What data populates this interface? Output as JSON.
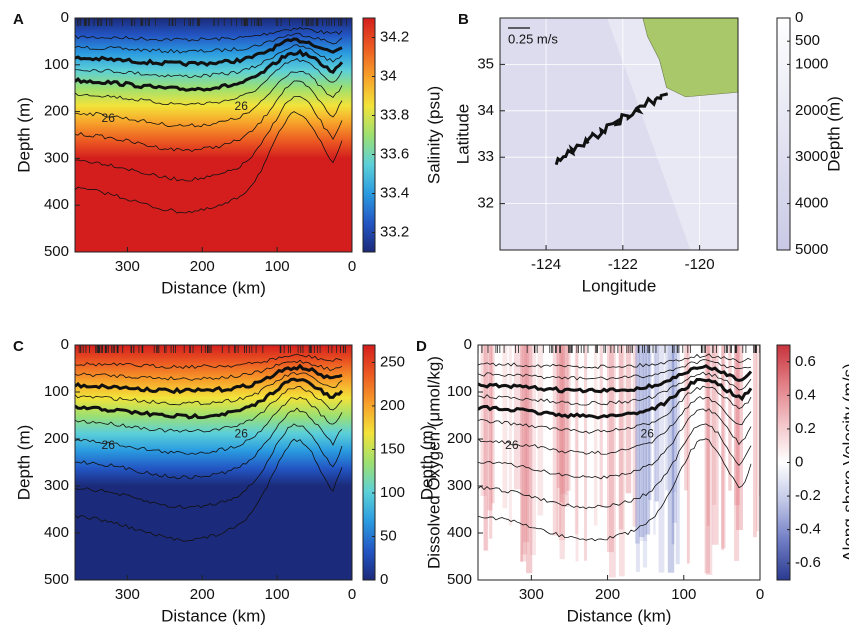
{
  "chart_data": [
    {
      "type": "section",
      "panel_label": "A",
      "xlabel": "Distance (km)",
      "ylabel": "Depth (m)",
      "xlim": [
        370,
        0
      ],
      "xticks": [
        300,
        200,
        100,
        0
      ],
      "ylim": [
        500,
        0
      ],
      "yticks": [
        0,
        100,
        200,
        300,
        400,
        500
      ],
      "colorbar_label": "Salinity (psu)",
      "clim": [
        33.1,
        34.3
      ],
      "cticks": [
        33.2,
        33.4,
        33.6,
        33.8,
        34,
        34.2
      ],
      "colormap": [
        "#1b2a7a",
        "#2356c4",
        "#2a9be0",
        "#5cd0d8",
        "#9ee070",
        "#f2e33a",
        "#f7a02a",
        "#ec5a22",
        "#d41e1e"
      ],
      "contour_labels": [
        "26",
        "26"
      ]
    },
    {
      "type": "map",
      "panel_label": "B",
      "xlabel": "Longitude",
      "ylabel": "Latitude",
      "xlim": [
        -125.2,
        -119
      ],
      "xticks": [
        -124,
        -122,
        -120
      ],
      "ylim": [
        31,
        36
      ],
      "yticks": [
        32,
        33,
        34,
        35
      ],
      "colorbar_label": "Depth (m)",
      "clim": [
        5000,
        0
      ],
      "cticks": [
        0,
        500,
        1000,
        2000,
        3000,
        4000,
        5000
      ],
      "colormap": [
        "#c9c9e6",
        "#ffffff"
      ],
      "scale_label": "0.25 m/s"
    },
    {
      "type": "section",
      "panel_label": "C",
      "xlabel": "Distance (km)",
      "ylabel": "Depth (m)",
      "xlim": [
        370,
        0
      ],
      "xticks": [
        300,
        200,
        100,
        0
      ],
      "ylim": [
        500,
        0
      ],
      "yticks": [
        0,
        100,
        200,
        300,
        400,
        500
      ],
      "colorbar_label": "Dissolved Oxygen (μmol/kg)",
      "clim": [
        0,
        270
      ],
      "cticks": [
        0,
        50,
        100,
        150,
        200,
        250
      ],
      "colormap": [
        "#1b2a7a",
        "#2356c4",
        "#2a9be0",
        "#5cd0d8",
        "#9ee070",
        "#f2e33a",
        "#f7a02a",
        "#ec5a22",
        "#d41e1e"
      ],
      "contour_labels": [
        "26",
        "26"
      ]
    },
    {
      "type": "section",
      "panel_label": "D",
      "xlabel": "Distance (km)",
      "ylabel": "Depth (m)",
      "xlim": [
        370,
        0
      ],
      "xticks": [
        300,
        200,
        100,
        0
      ],
      "ylim": [
        500,
        0
      ],
      "yticks": [
        0,
        100,
        200,
        300,
        400,
        500
      ],
      "colorbar_label": "Along-shore Velocity (m/s)",
      "clim": [
        -0.7,
        0.7
      ],
      "cticks": [
        -0.6,
        -0.4,
        -0.2,
        0,
        0.2,
        0.4,
        0.6
      ],
      "colormap": [
        "#2a3a90",
        "#6f7cc4",
        "#c0c6e6",
        "#ffffff",
        "#f2c4c8",
        "#e27f86",
        "#c8333c"
      ],
      "contour_labels": [
        "26",
        "26"
      ]
    }
  ]
}
